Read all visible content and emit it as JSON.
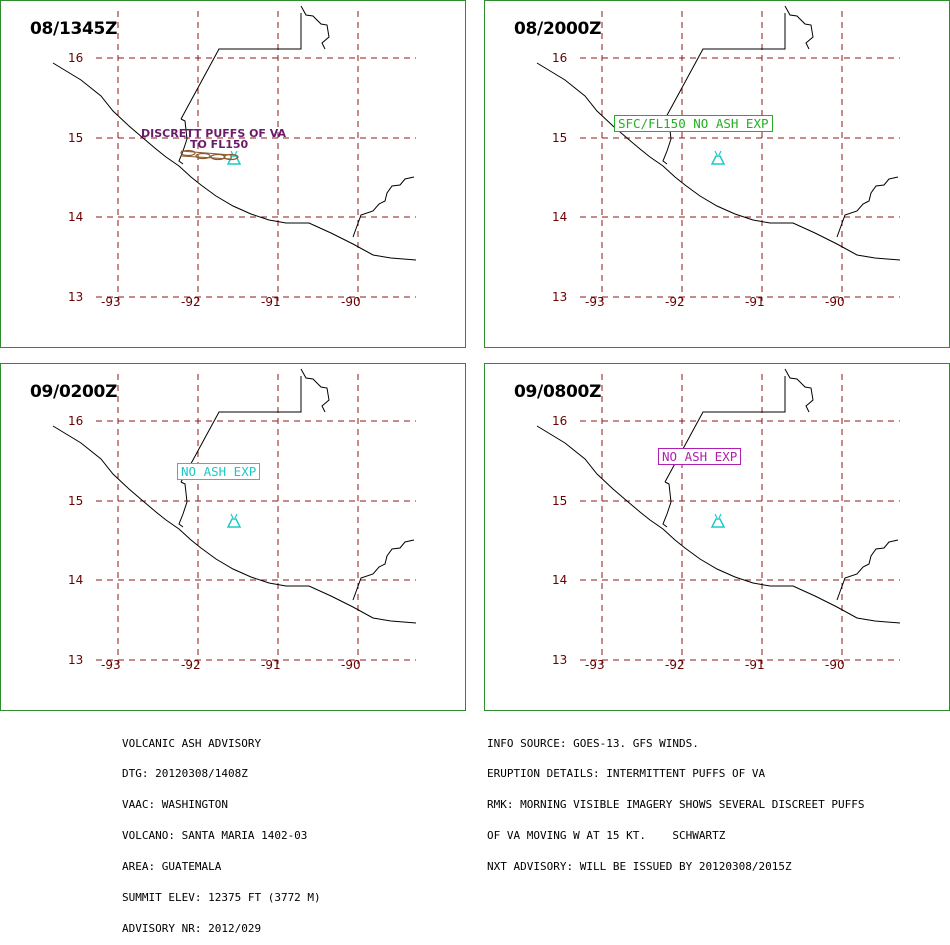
{
  "panels": [
    {
      "title": "08/1345Z",
      "label": null
    },
    {
      "title": "08/2000Z",
      "label": {
        "text": "SFC/FL150 NO ASH EXP",
        "color": "#22b022"
      }
    },
    {
      "title": "09/0200Z",
      "label": {
        "text": "NO ASH EXP",
        "color": "#1fc8c8"
      }
    },
    {
      "title": "09/0800Z",
      "label": {
        "text": "NO ASH EXP",
        "color": "#b020b0"
      }
    }
  ],
  "ash_annotation": {
    "line1": "DISCRETT PUFFS OF VA",
    "line2": "TO FL150",
    "color": "#6b1a6b"
  },
  "latitudes": [
    "16",
    "15",
    "14",
    "13"
  ],
  "longitudes": [
    "-93",
    "-92",
    "-91",
    "-90"
  ],
  "colors": {
    "grid": "#8b1a1a",
    "volcano": "#1fc8c8",
    "border": "#2e8b2e",
    "ash": "#8b5a2b"
  },
  "icons": {
    "volcano": "volcano-icon"
  },
  "advisory_left": [
    "VOLCANIC ASH ADVISORY",
    "DTG: 20120308/1408Z",
    "VAAC: WASHINGTON",
    "VOLCANO: SANTA MARIA 1402-03",
    "AREA: GUATEMALA",
    "SUMMIT ELEV: 12375 FT (3772 M)",
    "ADVISORY NR: 2012/029"
  ],
  "advisory_right": [
    "INFO SOURCE: GOES-13. GFS WINDS.",
    "ERUPTION DETAILS: INTERMITTENT PUFFS OF VA",
    "RMK: MORNING VISIBLE IMAGERY SHOWS SEVERAL DISCREET PUFFS",
    "OF VA MOVING W AT 15 KT.    SCHWARTZ",
    "NXT ADVISORY: WILL BE ISSUED BY 20120308/2015Z"
  ]
}
